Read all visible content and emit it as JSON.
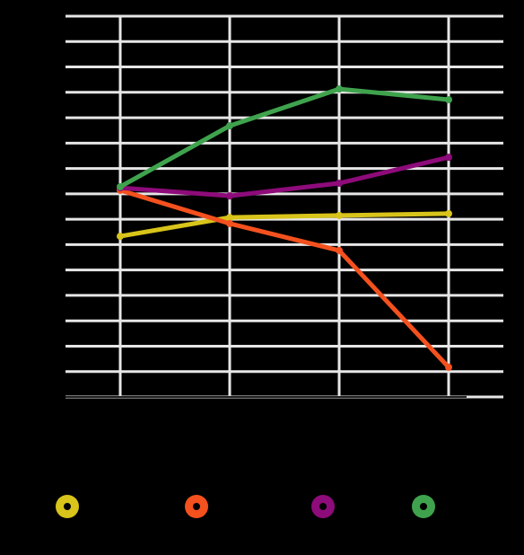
{
  "chart_data": {
    "type": "line",
    "categories": [
      null,
      null,
      null,
      null
    ],
    "series": [
      {
        "color": "#d8c41a",
        "values": [
          6.33,
          7.07,
          7.15,
          7.22
        ]
      },
      {
        "color": "#f4511e",
        "values": [
          8.14,
          6.83,
          5.77,
          1.17
        ]
      },
      {
        "color": "#8e0b7a",
        "values": [
          8.24,
          7.92,
          8.42,
          9.44
        ]
      },
      {
        "color": "#3fa34d",
        "values": [
          8.28,
          10.68,
          12.13,
          11.71
        ]
      }
    ],
    "ylim": [
      0,
      15
    ],
    "yticks": [
      0,
      1,
      2,
      3,
      4,
      5,
      6,
      7,
      8,
      9,
      10,
      11,
      12,
      13,
      14,
      15
    ],
    "grid": true
  }
}
